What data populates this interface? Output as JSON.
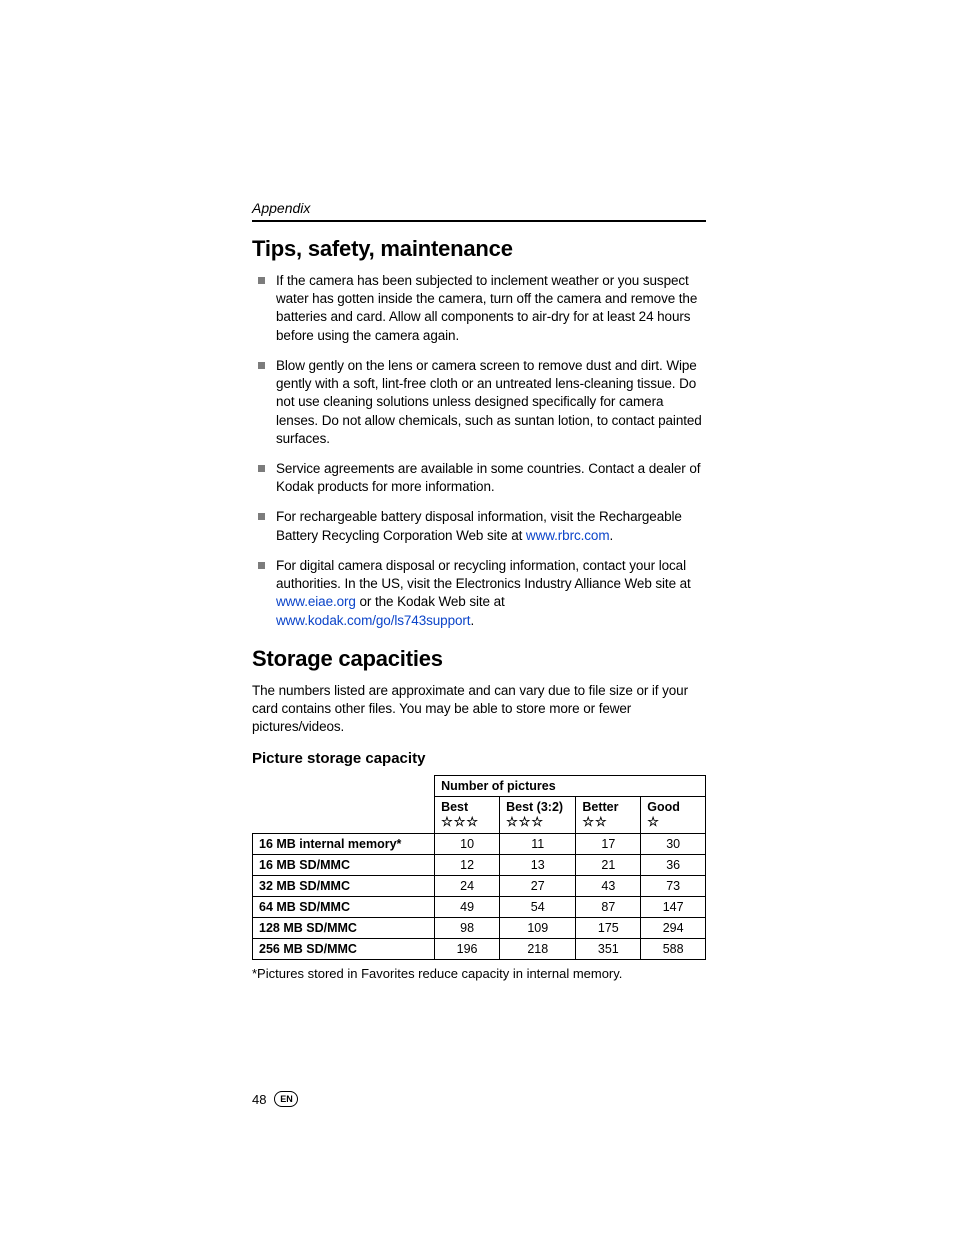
{
  "header": {
    "section_label": "Appendix"
  },
  "tips_section": {
    "heading": "Tips, safety, maintenance",
    "items": [
      {
        "text": "If the camera has been subjected to inclement weather or you suspect water has gotten inside the camera, turn off the camera and remove the batteries and card. Allow all components to air-dry for at least 24 hours before using the camera again."
      },
      {
        "text": "Blow gently on the lens or camera screen to remove dust and dirt. Wipe gently with a soft, lint-free cloth or an untreated lens-cleaning tissue. Do not use cleaning solutions unless designed specifically for camera lenses. Do not allow chemicals, such as suntan lotion, to contact painted surfaces."
      },
      {
        "text": "Service agreements are available in some countries. Contact a dealer of Kodak products for more information."
      },
      {
        "prefix": "For rechargeable battery disposal information, visit the Rechargeable Battery Recycling Corporation Web site at ",
        "link1": "www.rbrc.com",
        "suffix": "."
      },
      {
        "prefix": "For digital camera disposal or recycling information, contact your local authorities. In the US, visit the Electronics Industry Alliance Web site at ",
        "link1": "www.eiae.org",
        "mid": " or the Kodak Web site at ",
        "link2": "www.kodak.com/go/ls743support",
        "suffix": "."
      }
    ]
  },
  "storage_section": {
    "heading": "Storage capacities",
    "intro": "The numbers listed are approximate and can vary due to file size or if your card contains other files. You may be able to store more or fewer pictures/videos.",
    "subheading": "Picture storage capacity",
    "table": {
      "super_header": "Number of pictures",
      "columns": [
        {
          "label": "Best",
          "stars": "☆☆☆"
        },
        {
          "label": "Best (3:2)",
          "stars": "☆☆☆"
        },
        {
          "label": "Better",
          "stars": "☆☆"
        },
        {
          "label": "Good",
          "stars": "☆"
        }
      ],
      "rows": [
        {
          "label": "16 MB internal memory*",
          "values": [
            "10",
            "11",
            "17",
            "30"
          ]
        },
        {
          "label": "16 MB SD/MMC",
          "values": [
            "12",
            "13",
            "21",
            "36"
          ]
        },
        {
          "label": "32 MB SD/MMC",
          "values": [
            "24",
            "27",
            "43",
            "73"
          ]
        },
        {
          "label": "64 MB SD/MMC",
          "values": [
            "49",
            "54",
            "87",
            "147"
          ]
        },
        {
          "label": "128 MB SD/MMC",
          "values": [
            "98",
            "109",
            "175",
            "294"
          ]
        },
        {
          "label": "256 MB SD/MMC",
          "values": [
            "196",
            "218",
            "351",
            "588"
          ]
        }
      ]
    },
    "footnote": "*Pictures stored in Favorites reduce capacity in internal memory."
  },
  "footer": {
    "page_number": "48",
    "lang_code": "EN"
  },
  "colors": {
    "link": "#0b44c9",
    "bullet": "#7c7c7c",
    "text": "#000000",
    "border": "#000000",
    "background": "#ffffff"
  }
}
